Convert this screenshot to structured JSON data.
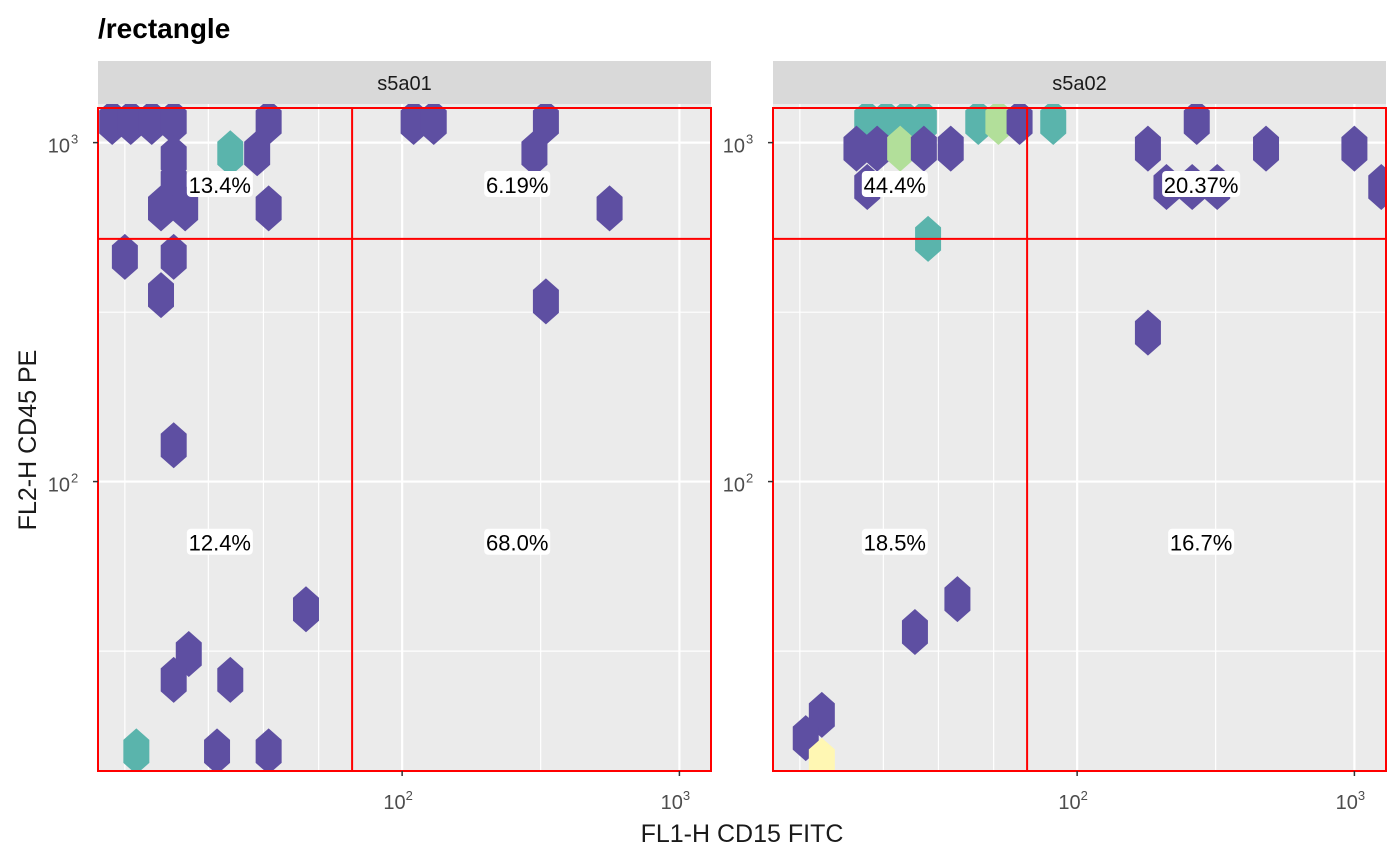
{
  "chart_data": {
    "type": "hexbin",
    "title": "/rectangle",
    "xlabel": "FL1-H CD15 FITC",
    "ylabel": "FL2-H CD45 PE",
    "x_scale": "log10",
    "y_scale": "log10",
    "xlim": [
      8,
      1300
    ],
    "ylim": [
      14,
      1300
    ],
    "x_ticks": [
      {
        "base": "10",
        "exp": "2",
        "value": 100
      },
      {
        "base": "10",
        "exp": "3",
        "value": 1000
      }
    ],
    "y_ticks": [
      {
        "base": "10",
        "exp": "2",
        "value": 100
      },
      {
        "base": "10",
        "exp": "3",
        "value": 1000
      }
    ],
    "gate": {
      "x_split": 66,
      "y_split": 520,
      "color": "#ff0000"
    },
    "colors": {
      "panel_bg": "#ebebeb",
      "grid": "#ffffff",
      "strip_bg": "#d9d9d9",
      "gate": "#ff0000",
      "label_bg": "#ffffff"
    },
    "fill_levels": {
      "low": "#5e4fa2",
      "mid": "#5ab4ac",
      "high": "#b2df9a",
      "max": "#fff7b3"
    },
    "panels": [
      {
        "name": "s5a01",
        "stats": [
          {
            "label": "13.4%",
            "x": 22,
            "y": 750
          },
          {
            "label": "6.19%",
            "x": 260,
            "y": 750
          },
          {
            "label": "12.4%",
            "x": 22,
            "y": 66
          },
          {
            "label": "68.0%",
            "x": 260,
            "y": 66
          }
        ],
        "hexes": [
          {
            "x": 9,
            "y": 1150,
            "level": "low"
          },
          {
            "x": 10.5,
            "y": 1150,
            "level": "low"
          },
          {
            "x": 12.5,
            "y": 1150,
            "level": "low"
          },
          {
            "x": 15,
            "y": 1150,
            "level": "low"
          },
          {
            "x": 15,
            "y": 900,
            "level": "low"
          },
          {
            "x": 15,
            "y": 760,
            "level": "low"
          },
          {
            "x": 13.5,
            "y": 640,
            "level": "low"
          },
          {
            "x": 16.5,
            "y": 640,
            "level": "low"
          },
          {
            "x": 15,
            "y": 460,
            "level": "low"
          },
          {
            "x": 10,
            "y": 460,
            "level": "low"
          },
          {
            "x": 13.5,
            "y": 355,
            "level": "low"
          },
          {
            "x": 15,
            "y": 128,
            "level": "low"
          },
          {
            "x": 24,
            "y": 930,
            "level": "mid"
          },
          {
            "x": 30,
            "y": 930,
            "level": "low"
          },
          {
            "x": 33,
            "y": 1150,
            "level": "low"
          },
          {
            "x": 33,
            "y": 640,
            "level": "low"
          },
          {
            "x": 110,
            "y": 1150,
            "level": "low"
          },
          {
            "x": 130,
            "y": 1150,
            "level": "low"
          },
          {
            "x": 330,
            "y": 1150,
            "level": "low"
          },
          {
            "x": 300,
            "y": 930,
            "level": "low"
          },
          {
            "x": 330,
            "y": 340,
            "level": "low"
          },
          {
            "x": 560,
            "y": 640,
            "level": "low"
          },
          {
            "x": 45,
            "y": 42,
            "level": "low"
          },
          {
            "x": 17,
            "y": 31,
            "level": "low"
          },
          {
            "x": 15,
            "y": 26,
            "level": "low"
          },
          {
            "x": 24,
            "y": 26,
            "level": "low"
          },
          {
            "x": 11,
            "y": 16,
            "level": "mid"
          },
          {
            "x": 21.5,
            "y": 16,
            "level": "low"
          },
          {
            "x": 33,
            "y": 16,
            "level": "low"
          }
        ]
      },
      {
        "name": "s5a02",
        "stats": [
          {
            "label": "44.4%",
            "x": 22,
            "y": 750
          },
          {
            "label": "20.37%",
            "x": 280,
            "y": 750
          },
          {
            "label": "18.5%",
            "x": 22,
            "y": 66
          },
          {
            "label": "16.7%",
            "x": 280,
            "y": 66
          }
        ],
        "hexes": [
          {
            "x": 17.5,
            "y": 1150,
            "level": "mid"
          },
          {
            "x": 20.5,
            "y": 1150,
            "level": "mid"
          },
          {
            "x": 24,
            "y": 1150,
            "level": "mid"
          },
          {
            "x": 28,
            "y": 1150,
            "level": "mid"
          },
          {
            "x": 44,
            "y": 1150,
            "level": "mid"
          },
          {
            "x": 52,
            "y": 1150,
            "level": "high"
          },
          {
            "x": 62,
            "y": 1150,
            "level": "low"
          },
          {
            "x": 82,
            "y": 1150,
            "level": "mid"
          },
          {
            "x": 16,
            "y": 960,
            "level": "low"
          },
          {
            "x": 19,
            "y": 960,
            "level": "low"
          },
          {
            "x": 23,
            "y": 960,
            "level": "high"
          },
          {
            "x": 28,
            "y": 960,
            "level": "low"
          },
          {
            "x": 35,
            "y": 960,
            "level": "low"
          },
          {
            "x": 17.5,
            "y": 740,
            "level": "low"
          },
          {
            "x": 29,
            "y": 520,
            "level": "mid"
          },
          {
            "x": 180,
            "y": 960,
            "level": "low"
          },
          {
            "x": 270,
            "y": 1150,
            "level": "low"
          },
          {
            "x": 480,
            "y": 960,
            "level": "low"
          },
          {
            "x": 1000,
            "y": 960,
            "level": "low"
          },
          {
            "x": 210,
            "y": 740,
            "level": "low"
          },
          {
            "x": 260,
            "y": 740,
            "level": "low"
          },
          {
            "x": 320,
            "y": 740,
            "level": "low"
          },
          {
            "x": 1250,
            "y": 740,
            "level": "low"
          },
          {
            "x": 180,
            "y": 275,
            "level": "low"
          },
          {
            "x": 37,
            "y": 45,
            "level": "low"
          },
          {
            "x": 26,
            "y": 36,
            "level": "low"
          },
          {
            "x": 12,
            "y": 20.5,
            "level": "low"
          },
          {
            "x": 10.5,
            "y": 17.5,
            "level": "low"
          },
          {
            "x": 12,
            "y": 15,
            "level": "max"
          }
        ]
      }
    ]
  }
}
